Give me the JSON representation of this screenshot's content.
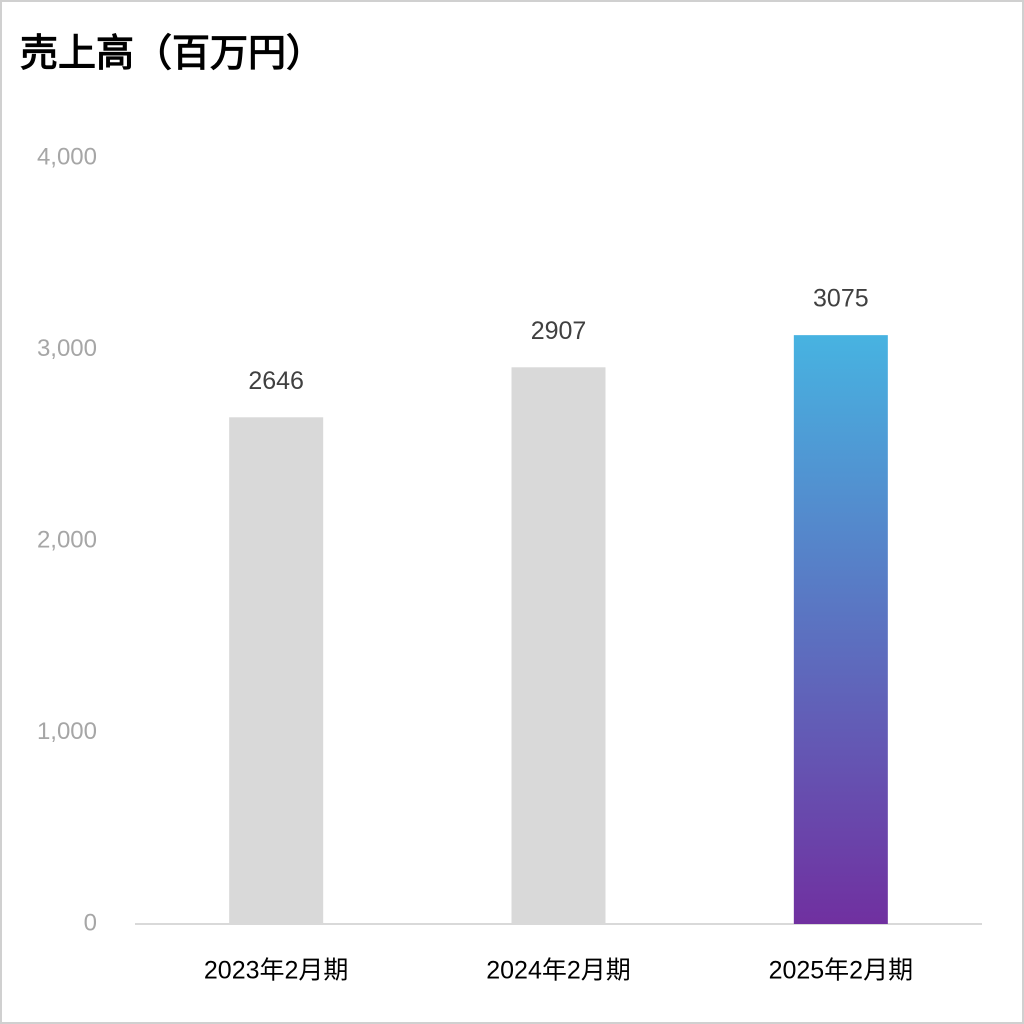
{
  "chart_data": {
    "type": "bar",
    "title": "売上高（百万円）",
    "categories": [
      "2023年2月期",
      "2024年2月期",
      "2025年2月期"
    ],
    "values": [
      2646,
      2907,
      3075
    ],
    "colors": [
      "#d9d9d9",
      "#d9d9d9",
      [
        "#47b3e1",
        "#7030a0"
      ]
    ],
    "ylim": [
      0,
      4000
    ],
    "yticks": [
      0,
      {
        "value": 1000,
        "label": "1,000"
      },
      {
        "value": 2000,
        "label": "2,000"
      },
      {
        "value": 3000,
        "label": "3,000"
      },
      {
        "value": 4000,
        "label": "4,000"
      }
    ],
    "grid": false
  }
}
